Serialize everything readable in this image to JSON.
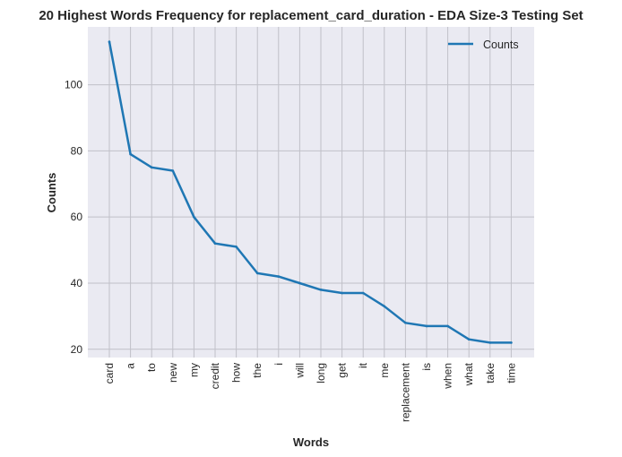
{
  "chart_data": {
    "type": "line",
    "title": "20 Highest Words Frequency for replacement_card_duration - EDA Size-3 Testing Set",
    "xlabel": "Words",
    "ylabel": "Counts",
    "categories": [
      "card",
      "a",
      "to",
      "new",
      "my",
      "credit",
      "how",
      "the",
      "i",
      "will",
      "long",
      "get",
      "it",
      "me",
      "replacement",
      "is",
      "when",
      "what",
      "take",
      "time"
    ],
    "series": [
      {
        "name": "Counts",
        "values": [
          113,
          79,
          75,
          74,
          60,
          52,
          51,
          43,
          42,
          40,
          38,
          37,
          37,
          33,
          28,
          27,
          27,
          23,
          22,
          22
        ]
      }
    ],
    "ylim": [
      17.5,
      117.5
    ],
    "yticks": [
      20,
      40,
      60,
      80,
      100
    ],
    "grid": true,
    "legend_position": "top-right",
    "colors": {
      "line": "#1f77b4",
      "plot_background": "#eaeaf2",
      "grid": "#c0c0c8",
      "text": "#262626"
    }
  }
}
